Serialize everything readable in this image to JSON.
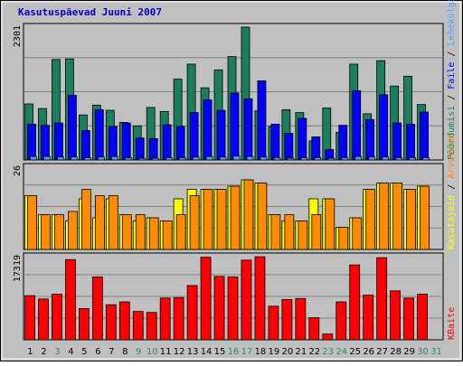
{
  "title": "Kasutuspäevad Juuni 2007",
  "colors": {
    "frame_bg": "#c0c0c0",
    "plot_bg": "#c0c0c0",
    "grid": "#808080",
    "title": "#0000cc",
    "hits": "#1b7f5c",
    "files": "#0000ff",
    "pages": "#4aa3ff",
    "visits": "#ffff00",
    "sites": "#ff8c00",
    "kbytes": "#ff0000",
    "weekday_label": "#000000",
    "weekend_label": "#2e8b57"
  },
  "chart_data": [
    {
      "type": "bar",
      "ymax_label": "2301",
      "ylim": [
        0,
        2301
      ],
      "categories": [
        "1",
        "2",
        "3",
        "4",
        "5",
        "6",
        "7",
        "8",
        "9",
        "10",
        "11",
        "12",
        "13",
        "14",
        "15",
        "16",
        "17",
        "18",
        "19",
        "20",
        "21",
        "22",
        "23",
        "24",
        "25",
        "26",
        "27",
        "28",
        "29",
        "30",
        "31"
      ],
      "weekend_days": [
        "3",
        "9",
        "10",
        "16",
        "17",
        "23",
        "24",
        "30",
        "31"
      ],
      "legend_parts": [
        {
          "text": "Pöördumisi",
          "color": "#1b7f5c"
        },
        {
          "text": " / ",
          "color": "#000000"
        },
        {
          "text": "Faile",
          "color": "#0000ff"
        },
        {
          "text": " / ",
          "color": "#000000"
        },
        {
          "text": "Lehekülgi",
          "color": "#4aa3ff"
        }
      ],
      "series": [
        {
          "name": "Pöördumisi",
          "values": [
            970,
            890,
            1740,
            1750,
            780,
            950,
            860,
            650,
            590,
            910,
            840,
            1400,
            1660,
            1250,
            1560,
            1790,
            2301,
            850,
            580,
            870,
            820,
            330,
            900,
            480,
            1660,
            800,
            1720,
            1280,
            1450,
            960,
            0
          ]
        },
        {
          "name": "Faile",
          "values": [
            620,
            600,
            640,
            1120,
            510,
            870,
            580,
            640,
            380,
            370,
            610,
            580,
            820,
            1040,
            860,
            1160,
            1060,
            1370,
            620,
            460,
            720,
            400,
            180,
            600,
            1200,
            700,
            1130,
            640,
            620,
            830,
            0
          ]
        },
        {
          "name": "Lehekülgi",
          "values": [
            60,
            60,
            50,
            50,
            40,
            50,
            60,
            40,
            30,
            30,
            40,
            40,
            50,
            60,
            50,
            70,
            60,
            50,
            40,
            30,
            40,
            40,
            30,
            40,
            60,
            50,
            50,
            40,
            40,
            40,
            0
          ]
        }
      ]
    },
    {
      "type": "bar",
      "ymax_label": "26",
      "ylim": [
        0,
        26
      ],
      "legend_parts": [
        {
          "text": "Kasutajaid",
          "color": "#ffff00"
        },
        {
          "text": " / ",
          "color": "#000000"
        },
        {
          "text": "Arvuteid",
          "color": "#ff8c00"
        }
      ],
      "series": [
        {
          "name": "Kasutajaid",
          "values": [
            17,
            11,
            11,
            9,
            16,
            10,
            16,
            11,
            9,
            10,
            9,
            16,
            19,
            19,
            19,
            20,
            22,
            21,
            11,
            9,
            9,
            16,
            16,
            7,
            10,
            19,
            21,
            21,
            19,
            20,
            0
          ]
        },
        {
          "name": "Arvuteid",
          "values": [
            17,
            11,
            11,
            12,
            19,
            17,
            17,
            11,
            11,
            10,
            9,
            11,
            17,
            19,
            19,
            20,
            22,
            21,
            11,
            11,
            9,
            11,
            16,
            7,
            10,
            19,
            21,
            21,
            19,
            20,
            0
          ]
        }
      ]
    },
    {
      "type": "bar",
      "ymax_label": "17319",
      "ylim": [
        0,
        17319
      ],
      "legend_parts": [
        {
          "text": "KBaite",
          "color": "#ff0000"
        }
      ],
      "series": [
        {
          "name": "KBaite",
          "values": [
            9200,
            8500,
            9500,
            16700,
            6500,
            13100,
            7300,
            7900,
            5900,
            5700,
            8700,
            8800,
            11300,
            17200,
            13200,
            13100,
            16600,
            17300,
            7000,
            8400,
            8600,
            4600,
            1200,
            7900,
            15600,
            9300,
            17100,
            10200,
            8700,
            9500,
            0
          ]
        }
      ]
    }
  ]
}
